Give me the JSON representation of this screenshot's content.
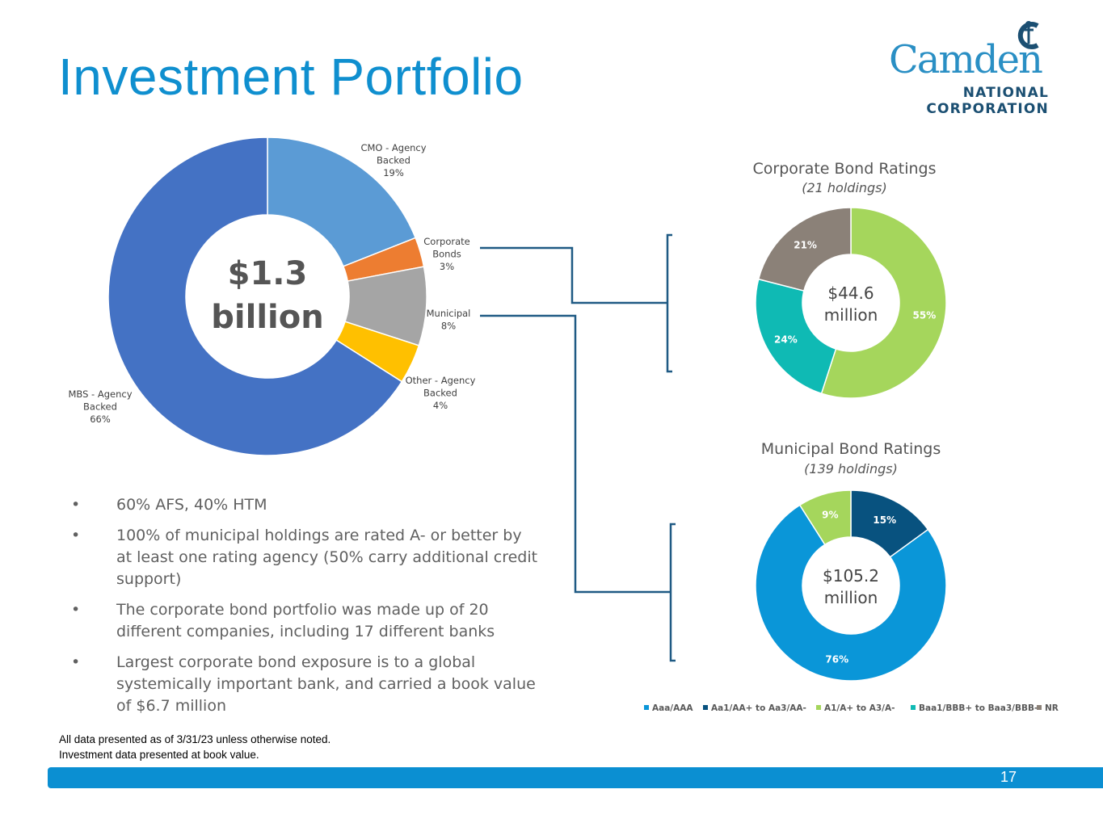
{
  "page": {
    "title": "Investment Portfolio",
    "page_number": "17"
  },
  "logo": {
    "name": "Camden",
    "line1": "NATIONAL",
    "line2": "CORPORATION"
  },
  "bullets": [
    "60% AFS, 40% HTM",
    "100% of municipal holdings are rated A- or better by at least one rating agency (50% carry additional credit support)",
    "The corporate bond portfolio was made up of 20 different companies, including 17 different banks",
    "Largest corporate bond exposure is to a global systemically important bank, and carried a book value of $6.7 million"
  ],
  "footnotes": [
    "All data presented as of 3/31/23 unless otherwise noted.",
    "Investment data presented at book value."
  ],
  "colors": {
    "title": "#0f8fcf",
    "connector": "#1f5a84",
    "footer_bar": "#0b8fd2",
    "rating_aaa": "#0a96d8",
    "rating_aa": "#08527f",
    "rating_a": "#a5d65c",
    "rating_baa": "#0fbab4",
    "rating_nr": "#8b8178"
  },
  "chart_data": [
    {
      "type": "pie",
      "subtype": "donut",
      "title": "",
      "center_label": [
        "$1.3",
        "billion"
      ],
      "slices": [
        {
          "name": "CMO - Agency Backed",
          "label_lines": [
            "CMO - Agency",
            "Backed"
          ],
          "percent_label": "19%",
          "value": 19,
          "color": "#5b9bd5"
        },
        {
          "name": "Corporate Bonds",
          "label_lines": [
            "Corporate",
            "Bonds"
          ],
          "percent_label": "3%",
          "value": 3,
          "color": "#ed7d31"
        },
        {
          "name": "Municipal",
          "label_lines": [
            "Municipal"
          ],
          "percent_label": "8%",
          "value": 8,
          "color": "#a5a5a5"
        },
        {
          "name": "Other - Agency Backed",
          "label_lines": [
            "Other - Agency",
            "Backed"
          ],
          "percent_label": "4%",
          "value": 4,
          "color": "#ffc000"
        },
        {
          "name": "MBS - Agency Backed",
          "label_lines": [
            "MBS - Agency",
            "Backed"
          ],
          "percent_label": "66%",
          "value": 66,
          "color": "#4472c4"
        }
      ]
    },
    {
      "type": "pie",
      "subtype": "donut",
      "title": "Corporate Bond Ratings",
      "subtitle": "(21 holdings)",
      "center_label": [
        "$44.6",
        "million"
      ],
      "slices": [
        {
          "name": "A1/A+ to A3/A-",
          "value": 55,
          "label": "55%",
          "color": "#a5d65c"
        },
        {
          "name": "Baa1/BBB+ to Baa3/BBB-",
          "value": 24,
          "label": "24%",
          "color": "#0fbab4"
        },
        {
          "name": "NR",
          "value": 21,
          "label": "21%",
          "color": "#8b8178"
        }
      ]
    },
    {
      "type": "pie",
      "subtype": "donut",
      "title": "Municipal Bond Ratings",
      "subtitle": "(139 holdings)",
      "center_label": [
        "$105.2",
        "million"
      ],
      "slices": [
        {
          "name": "Aa1/AA+ to Aa3/AA-",
          "value": 15,
          "label": "15%",
          "color": "#08527f"
        },
        {
          "name": "Aaa/AAA",
          "value": 76,
          "label": "76%",
          "color": "#0a96d8"
        },
        {
          "name": "A1/A+ to A3/A-",
          "value": 9,
          "label": "9%",
          "color": "#a5d65c"
        }
      ]
    }
  ],
  "legend": [
    {
      "label": "Aaa/AAA",
      "color": "#0a96d8"
    },
    {
      "label": "Aa1/AA+ to Aa3/AA-",
      "color": "#08527f"
    },
    {
      "label": "A1/A+ to A3/A-",
      "color": "#a5d65c"
    },
    {
      "label": "Baa1/BBB+ to Baa3/BBB-",
      "color": "#0fbab4"
    },
    {
      "label": "NR",
      "color": "#8b8178"
    }
  ]
}
